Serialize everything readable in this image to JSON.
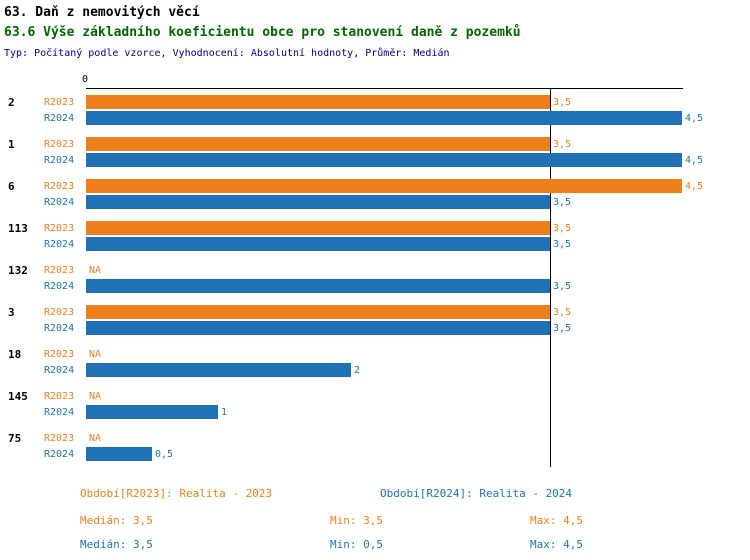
{
  "header": {
    "title": "63. Daň z nemovitých věcí",
    "subtitle": "63.6 Výše základního koeficientu obce pro stanovení daně z pozemků",
    "meta": "Typ: Počítaný podle vzorce, Vyhodnocení: Absolutní hodnoty, Průměr: Medián"
  },
  "colors": {
    "r2023": "#EE7F1D",
    "r2024": "#1F72B5",
    "subtitle_green": "#006600",
    "meta_blue": "#00008B",
    "axis_black": "#000000"
  },
  "chart_data": {
    "type": "bar",
    "orientation": "horizontal",
    "title": "63.6 Výše základního koeficientu obce pro stanovení daně z pozemků",
    "x_axis": {
      "min": 0,
      "max": 4.5,
      "origin_tick_label": "0"
    },
    "reference_line_x": 3.5,
    "grid": false,
    "legend_position": "bottom",
    "series": [
      {
        "name": "R2023",
        "color": "#EE7F1D"
      },
      {
        "name": "R2024",
        "color": "#1F72B5"
      }
    ],
    "categories": [
      "2",
      "1",
      "6",
      "113",
      "132",
      "3",
      "18",
      "145",
      "75"
    ],
    "rows": [
      {
        "category": "2",
        "values": [
          {
            "series": "R2023",
            "value": 3.5,
            "label": "3,5"
          },
          {
            "series": "R2024",
            "value": 4.5,
            "label": "4,5"
          }
        ]
      },
      {
        "category": "1",
        "values": [
          {
            "series": "R2023",
            "value": 3.5,
            "label": "3,5"
          },
          {
            "series": "R2024",
            "value": 4.5,
            "label": "4,5"
          }
        ]
      },
      {
        "category": "6",
        "values": [
          {
            "series": "R2023",
            "value": 4.5,
            "label": "4,5"
          },
          {
            "series": "R2024",
            "value": 3.5,
            "label": "3,5"
          }
        ]
      },
      {
        "category": "113",
        "values": [
          {
            "series": "R2023",
            "value": 3.5,
            "label": "3,5"
          },
          {
            "series": "R2024",
            "value": 3.5,
            "label": "3,5"
          }
        ]
      },
      {
        "category": "132",
        "values": [
          {
            "series": "R2023",
            "value": null,
            "label": "NA"
          },
          {
            "series": "R2024",
            "value": 3.5,
            "label": "3,5"
          }
        ]
      },
      {
        "category": "3",
        "values": [
          {
            "series": "R2023",
            "value": 3.5,
            "label": "3,5"
          },
          {
            "series": "R2024",
            "value": 3.5,
            "label": "3,5"
          }
        ]
      },
      {
        "category": "18",
        "values": [
          {
            "series": "R2023",
            "value": null,
            "label": "NA"
          },
          {
            "series": "R2024",
            "value": 2,
            "label": "2"
          }
        ]
      },
      {
        "category": "145",
        "values": [
          {
            "series": "R2023",
            "value": null,
            "label": "NA"
          },
          {
            "series": "R2024",
            "value": 1,
            "label": "1"
          }
        ]
      },
      {
        "category": "75",
        "values": [
          {
            "series": "R2023",
            "value": null,
            "label": "NA"
          },
          {
            "series": "R2024",
            "value": 0.5,
            "label": "0,5"
          }
        ]
      }
    ]
  },
  "legend": {
    "r2023": "Období[R2023]: Realita - 2023",
    "r2024": "Období[R2024]: Realita - 2024"
  },
  "stats": {
    "r2023": {
      "median": "Medián: 3,5",
      "min": "Min: 3,5",
      "max": "Max: 4,5"
    },
    "r2024": {
      "median": "Medián: 3,5",
      "min": "Min: 0,5",
      "max": "Max: 4,5"
    }
  }
}
